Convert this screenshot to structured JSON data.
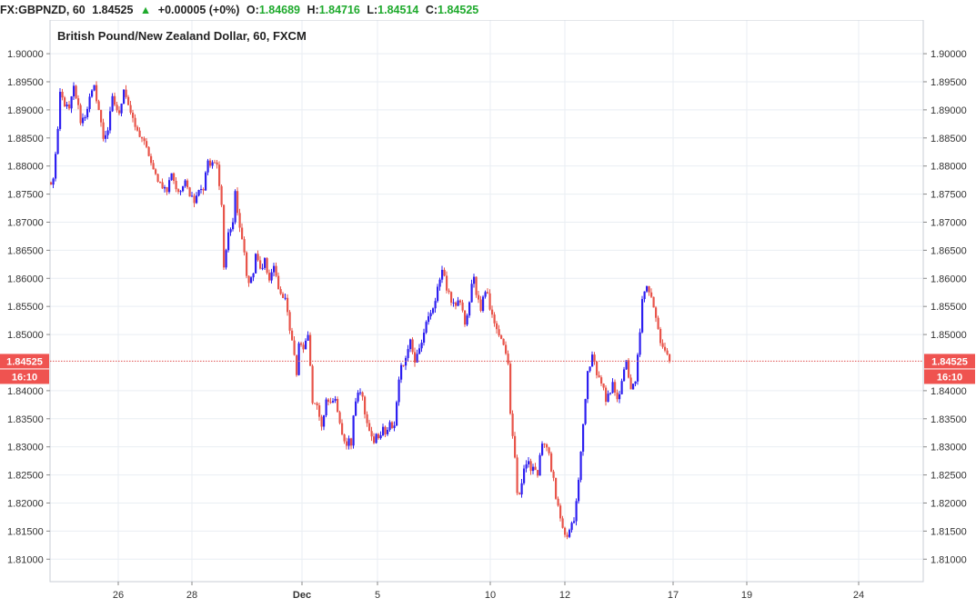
{
  "header": {
    "symbol": "FX:GBPNZD, 60",
    "last": "1.84525",
    "change_icon": "triangle-up-icon",
    "change": "+0.00005 (+0%)",
    "o_label": "O:",
    "o_value": "1.84689",
    "h_label": "H:",
    "h_value": "1.84716",
    "l_label": "L:",
    "l_value": "1.84514",
    "c_label": "C:",
    "c_value": "1.84525"
  },
  "colors": {
    "up": "#2d1ff0",
    "down": "#e8544a",
    "grid": "#e9eef3",
    "price_line": "#e05050",
    "tag_bg": "#ef5350"
  },
  "chart_data": {
    "type": "candlestick",
    "title": "British Pound/New Zealand Dollar, 60, FXCM",
    "ylim": [
      1.806,
      1.906
    ],
    "y_ticks": [
      "1.90000",
      "1.89500",
      "1.89000",
      "1.88500",
      "1.88000",
      "1.87500",
      "1.87000",
      "1.86500",
      "1.86000",
      "1.85500",
      "1.85000",
      "1.84000",
      "1.83500",
      "1.83000",
      "1.82500",
      "1.82000",
      "1.81500",
      "1.81000"
    ],
    "x_ticks": [
      "26",
      "28",
      "Dec",
      "5",
      "10",
      "12",
      "17",
      "19",
      "24"
    ],
    "last_price": "1.84525",
    "countdown": "16:10",
    "grid": true,
    "path_points": [
      [
        0,
        1.8765
      ],
      [
        1,
        1.878
      ],
      [
        2,
        1.882
      ],
      [
        3,
        1.886
      ],
      [
        4,
        1.893
      ],
      [
        6,
        1.891
      ],
      [
        8,
        1.89
      ],
      [
        10,
        1.894
      ],
      [
        12,
        1.8905
      ],
      [
        13,
        1.888
      ],
      [
        15,
        1.889
      ],
      [
        17,
        1.892
      ],
      [
        19,
        1.894
      ],
      [
        21,
        1.89
      ],
      [
        23,
        1.885
      ],
      [
        25,
        1.8865
      ],
      [
        27,
        1.892
      ],
      [
        30,
        1.889
      ],
      [
        32,
        1.894
      ],
      [
        34,
        1.891
      ],
      [
        36,
        1.888
      ],
      [
        38,
        1.886
      ],
      [
        40,
        1.885
      ],
      [
        43,
        1.882
      ],
      [
        45,
        1.879
      ],
      [
        48,
        1.877
      ],
      [
        51,
        1.8755
      ],
      [
        53,
        1.879
      ],
      [
        55,
        1.876
      ],
      [
        57,
        1.875
      ],
      [
        59,
        1.878
      ],
      [
        61,
        1.875
      ],
      [
        63,
        1.874
      ],
      [
        65,
        1.876
      ],
      [
        67,
        1.876
      ],
      [
        69,
        1.881
      ],
      [
        70,
        1.88
      ],
      [
        72,
        1.8805
      ],
      [
        73,
        1.88
      ],
      [
        74,
        1.877
      ],
      [
        75,
        1.873
      ],
      [
        76,
        1.862
      ],
      [
        77,
        1.865
      ],
      [
        78,
        1.868
      ],
      [
        80,
        1.87
      ],
      [
        81,
        1.875
      ],
      [
        82,
        1.872
      ],
      [
        83,
        1.869
      ],
      [
        84,
        1.8665
      ],
      [
        85,
        1.8645
      ],
      [
        86,
        1.861
      ],
      [
        87,
        1.859
      ],
      [
        88,
        1.86
      ],
      [
        89,
        1.861
      ],
      [
        90,
        1.864
      ],
      [
        92,
        1.862
      ],
      [
        93,
        1.8615
      ],
      [
        94,
        1.863
      ],
      [
        95,
        1.861
      ],
      [
        96,
        1.86
      ],
      [
        98,
        1.862
      ],
      [
        99,
        1.86
      ],
      [
        100,
        1.858
      ],
      [
        101,
        1.857
      ],
      [
        102,
        1.857
      ],
      [
        103,
        1.856
      ],
      [
        104,
        1.8545
      ],
      [
        105,
        1.851
      ],
      [
        106,
        1.849
      ],
      [
        107,
        1.846
      ],
      [
        108,
        1.843
      ],
      [
        109,
        1.848
      ],
      [
        110,
        1.8485
      ],
      [
        111,
        1.847
      ],
      [
        112,
        1.849
      ],
      [
        113,
        1.85
      ],
      [
        114,
        1.845
      ],
      [
        115,
        1.838
      ],
      [
        116,
        1.8375
      ],
      [
        117,
        1.837
      ],
      [
        118,
        1.835
      ],
      [
        119,
        1.833
      ],
      [
        121,
        1.838
      ],
      [
        123,
        1.8385
      ],
      [
        125,
        1.8385
      ],
      [
        126,
        1.836
      ],
      [
        127,
        1.834
      ],
      [
        128,
        1.832
      ],
      [
        129,
        1.831
      ],
      [
        130,
        1.83
      ],
      [
        131,
        1.831
      ],
      [
        132,
        1.83
      ],
      [
        133,
        1.836
      ],
      [
        135,
        1.84
      ],
      [
        137,
        1.839
      ],
      [
        138,
        1.836
      ],
      [
        139,
        1.834
      ],
      [
        140,
        1.833
      ],
      [
        141,
        1.832
      ],
      [
        142,
        1.831
      ],
      [
        143,
        1.8325
      ],
      [
        144,
        1.832
      ],
      [
        145,
        1.832
      ],
      [
        146,
        1.833
      ],
      [
        147,
        1.832
      ],
      [
        149,
        1.834
      ],
      [
        150,
        1.833
      ],
      [
        151,
        1.834
      ],
      [
        152,
        1.838
      ],
      [
        153,
        1.842
      ],
      [
        154,
        1.845
      ],
      [
        155,
        1.844
      ],
      [
        156,
        1.846
      ],
      [
        157,
        1.848
      ],
      [
        158,
        1.849
      ],
      [
        159,
        1.847
      ],
      [
        160,
        1.8455
      ],
      [
        161,
        1.847
      ],
      [
        162,
        1.848
      ],
      [
        163,
        1.849
      ],
      [
        164,
        1.85
      ],
      [
        165,
        1.852
      ],
      [
        166,
        1.853
      ],
      [
        167,
        1.854
      ],
      [
        168,
        1.855
      ],
      [
        169,
        1.856
      ],
      [
        170,
        1.858
      ],
      [
        171,
        1.86
      ],
      [
        172,
        1.862
      ],
      [
        173,
        1.86
      ],
      [
        174,
        1.858
      ],
      [
        175,
        1.857
      ],
      [
        176,
        1.856
      ],
      [
        177,
        1.856
      ],
      [
        178,
        1.855
      ],
      [
        180,
        1.856
      ],
      [
        181,
        1.854
      ],
      [
        182,
        1.852
      ],
      [
        183,
        1.853
      ],
      [
        184,
        1.856
      ],
      [
        185,
        1.859
      ],
      [
        186,
        1.86
      ],
      [
        187,
        1.857
      ],
      [
        188,
        1.856
      ],
      [
        189,
        1.854
      ],
      [
        190,
        1.857
      ],
      [
        191,
        1.858
      ],
      [
        192,
        1.857
      ],
      [
        193,
        1.855
      ],
      [
        194,
        1.854
      ],
      [
        195,
        1.852
      ],
      [
        196,
        1.851
      ],
      [
        197,
        1.85
      ],
      [
        198,
        1.849
      ],
      [
        199,
        1.848
      ],
      [
        200,
        1.8465
      ],
      [
        201,
        1.845
      ],
      [
        202,
        1.836
      ],
      [
        203,
        1.832
      ],
      [
        204,
        1.828
      ],
      [
        205,
        1.822
      ],
      [
        206,
        1.821
      ],
      [
        207,
        1.823
      ],
      [
        208,
        1.826
      ],
      [
        209,
        1.827
      ],
      [
        210,
        1.827
      ],
      [
        211,
        1.826
      ],
      [
        212,
        1.827
      ],
      [
        213,
        1.826
      ],
      [
        214,
        1.825
      ],
      [
        215,
        1.828
      ],
      [
        216,
        1.83
      ],
      [
        217,
        1.831
      ],
      [
        218,
        1.83
      ],
      [
        219,
        1.829
      ],
      [
        220,
        1.826
      ],
      [
        221,
        1.824
      ],
      [
        222,
        1.821
      ],
      [
        223,
        1.819
      ],
      [
        224,
        1.817
      ],
      [
        225,
        1.815
      ],
      [
        226,
        1.814
      ],
      [
        227,
        1.814
      ],
      [
        228,
        1.815
      ],
      [
        229,
        1.816
      ],
      [
        230,
        1.817
      ],
      [
        231,
        1.82
      ],
      [
        232,
        1.824
      ],
      [
        233,
        1.829
      ],
      [
        234,
        1.834
      ],
      [
        235,
        1.839
      ],
      [
        236,
        1.843
      ],
      [
        237,
        1.844
      ],
      [
        238,
        1.847
      ],
      [
        239,
        1.845
      ],
      [
        240,
        1.843
      ],
      [
        241,
        1.842
      ],
      [
        242,
        1.841
      ],
      [
        243,
        1.84
      ],
      [
        244,
        1.838
      ],
      [
        245,
        1.839
      ],
      [
        246,
        1.84
      ],
      [
        247,
        1.842
      ],
      [
        248,
        1.84
      ],
      [
        249,
        1.838
      ],
      [
        250,
        1.839
      ],
      [
        251,
        1.842
      ],
      [
        252,
        1.844
      ],
      [
        253,
        1.845
      ],
      [
        254,
        1.842
      ],
      [
        255,
        1.84
      ],
      [
        256,
        1.841
      ],
      [
        257,
        1.842
      ],
      [
        258,
        1.846
      ],
      [
        259,
        1.85
      ],
      [
        260,
        1.856
      ],
      [
        261,
        1.858
      ],
      [
        262,
        1.859
      ],
      [
        263,
        1.858
      ],
      [
        264,
        1.857
      ],
      [
        265,
        1.855
      ],
      [
        266,
        1.853
      ],
      [
        267,
        1.851
      ],
      [
        268,
        1.849
      ],
      [
        269,
        1.848
      ],
      [
        270,
        1.847
      ],
      [
        271,
        1.846
      ],
      [
        272,
        1.84525
      ]
    ]
  }
}
